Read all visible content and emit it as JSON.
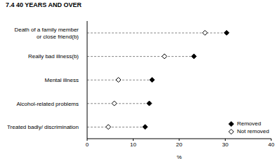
{
  "chart_data": {
    "type": "dot",
    "title": "7.4 40 YEARS AND OVER",
    "orientation": "horizontal",
    "categories": [
      "Death of a family member or close friend(b)",
      "Really bad illness(b)",
      "Mental illness",
      "Alcohol-related problems",
      "Treated badly/ discrimination"
    ],
    "series": [
      {
        "name": "Removed",
        "color": "#000000",
        "marker": "diamond",
        "values": [
          30.3,
          23.2,
          14.1,
          13.5,
          12.6
        ]
      },
      {
        "name": "Not removed",
        "color": "#000000",
        "marker": "hollow_diamond",
        "values": [
          25.6,
          16.8,
          6.8,
          5.9,
          4.6
        ]
      }
    ],
    "x_label": "%",
    "xlim": [
      0,
      40
    ],
    "xticks": [
      0,
      10,
      20,
      30,
      40
    ],
    "grid": false,
    "legend": "lower right"
  }
}
